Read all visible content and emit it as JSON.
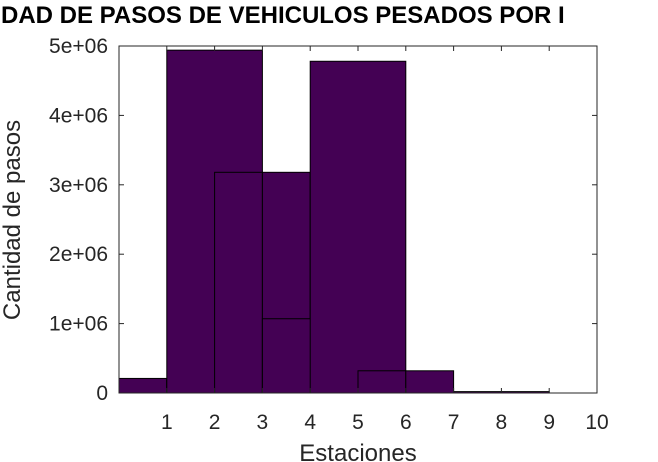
{
  "chart_data": {
    "type": "bar",
    "title": "DAD DE PASOS DE VEHICULOS PESADOS POR I",
    "xlabel": "Estaciones",
    "ylabel": "Cantidad de pasos",
    "xlim": [
      0,
      10
    ],
    "ylim": [
      0,
      5000000
    ],
    "xticks": [
      "1",
      "2",
      "3",
      "4",
      "5",
      "6",
      "7",
      "8",
      "9",
      "10"
    ],
    "yticks": [
      "0",
      "1e+06",
      "2e+06",
      "3e+06",
      "4e+06",
      "5e+06"
    ],
    "bar_color": "#440154",
    "grid": false,
    "bars": [
      {
        "x0": 0,
        "x1": 1,
        "y": 210000
      },
      {
        "x0": 1,
        "x1": 2,
        "y": 210000
      },
      {
        "x0": 1,
        "x1": 3,
        "y": 4940000
      },
      {
        "x0": 2,
        "x1": 3,
        "y": 3180000
      },
      {
        "x0": 3,
        "x1": 4,
        "y": 3180000
      },
      {
        "x0": 3,
        "x1": 5,
        "y": 1070000
      },
      {
        "x0": 4,
        "x1": 6,
        "y": 4780000
      },
      {
        "x0": 5,
        "x1": 6,
        "y": 320000
      },
      {
        "x0": 6,
        "x1": 7,
        "y": 320000
      },
      {
        "x0": 7,
        "x1": 8,
        "y": 20000
      },
      {
        "x0": 8,
        "x1": 9,
        "y": 20000
      }
    ]
  }
}
